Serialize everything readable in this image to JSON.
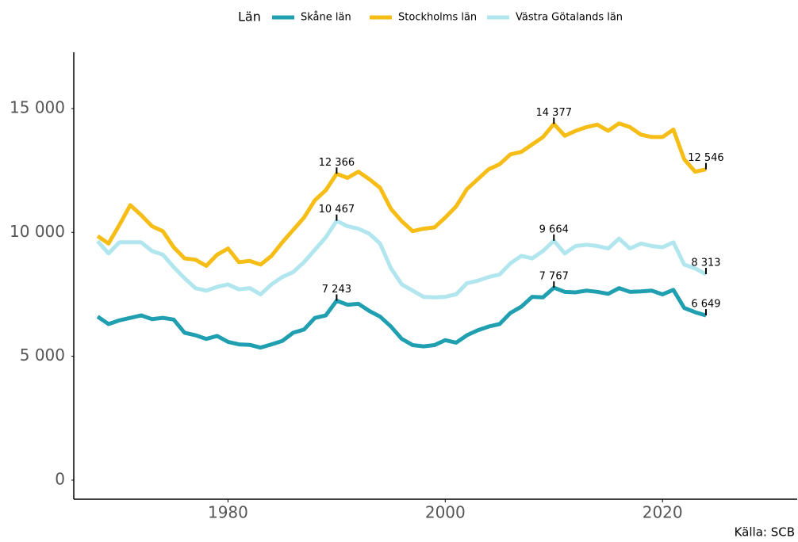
{
  "chart_data": {
    "type": "line",
    "legend_title": "Län",
    "source": "Källa: SCB",
    "x": [
      1968,
      1969,
      1970,
      1971,
      1972,
      1973,
      1974,
      1975,
      1976,
      1977,
      1978,
      1979,
      1980,
      1981,
      1982,
      1983,
      1984,
      1985,
      1986,
      1987,
      1988,
      1989,
      1990,
      1991,
      1992,
      1993,
      1994,
      1995,
      1996,
      1997,
      1998,
      1999,
      2000,
      2001,
      2002,
      2003,
      2004,
      2005,
      2006,
      2007,
      2008,
      2009,
      2010,
      2011,
      2012,
      2013,
      2014,
      2015,
      2016,
      2017,
      2018,
      2019,
      2020,
      2021,
      2022,
      2023,
      2024
    ],
    "series": [
      {
        "name": "Skåne län",
        "color": "#1f9fb0",
        "values": [
          6600,
          6300,
          6450,
          6550,
          6650,
          6500,
          6550,
          6480,
          5950,
          5850,
          5700,
          5820,
          5580,
          5480,
          5460,
          5350,
          5480,
          5620,
          5950,
          6080,
          6550,
          6650,
          7243,
          7080,
          7120,
          6830,
          6600,
          6200,
          5700,
          5450,
          5400,
          5450,
          5650,
          5550,
          5850,
          6050,
          6200,
          6300,
          6750,
          7000,
          7400,
          7380,
          7767,
          7600,
          7580,
          7650,
          7600,
          7520,
          7750,
          7600,
          7620,
          7650,
          7500,
          7680,
          6950,
          6780,
          6649
        ],
        "value_labels": [
          null,
          null,
          null,
          null,
          null,
          null,
          null,
          null,
          null,
          null,
          null,
          null,
          null,
          null,
          null,
          null,
          null,
          null,
          null,
          null,
          null,
          null,
          "7 243",
          null,
          null,
          null,
          null,
          null,
          null,
          null,
          null,
          null,
          null,
          null,
          null,
          null,
          null,
          null,
          null,
          null,
          null,
          null,
          "7 767",
          null,
          null,
          null,
          null,
          null,
          null,
          null,
          null,
          null,
          null,
          null,
          null,
          null,
          "6 649"
        ]
      },
      {
        "name": "Stockholms län",
        "color": "#f6bd16",
        "values": [
          9850,
          9550,
          10300,
          11100,
          10700,
          10250,
          10050,
          9400,
          8950,
          8900,
          8650,
          9100,
          9350,
          8800,
          8850,
          8700,
          9050,
          9600,
          10100,
          10600,
          11300,
          11700,
          12366,
          12200,
          12450,
          12150,
          11800,
          10950,
          10450,
          10050,
          10150,
          10200,
          10600,
          11050,
          11750,
          12150,
          12550,
          12750,
          13150,
          13250,
          13550,
          13850,
          14377,
          13900,
          14100,
          14250,
          14350,
          14100,
          14400,
          14250,
          13950,
          13850,
          13850,
          14150,
          12950,
          12450,
          12546
        ],
        "value_labels": [
          null,
          null,
          null,
          null,
          null,
          null,
          null,
          null,
          null,
          null,
          null,
          null,
          null,
          null,
          null,
          null,
          null,
          null,
          null,
          null,
          null,
          null,
          "12 366",
          null,
          null,
          null,
          null,
          null,
          null,
          null,
          null,
          null,
          null,
          null,
          null,
          null,
          null,
          null,
          null,
          null,
          null,
          null,
          "14 377",
          null,
          null,
          null,
          null,
          null,
          null,
          null,
          null,
          null,
          null,
          null,
          null,
          null,
          "12 546"
        ]
      },
      {
        "name": "Västra Götalands län",
        "color": "#b1e6ef",
        "values": [
          9650,
          9150,
          9600,
          9600,
          9600,
          9250,
          9100,
          8600,
          8150,
          7750,
          7650,
          7800,
          7900,
          7700,
          7750,
          7500,
          7900,
          8200,
          8400,
          8800,
          9300,
          9800,
          10467,
          10250,
          10150,
          9950,
          9550,
          8550,
          7900,
          7650,
          7400,
          7380,
          7400,
          7500,
          7950,
          8050,
          8200,
          8300,
          8750,
          9050,
          8950,
          9250,
          9664,
          9150,
          9450,
          9500,
          9450,
          9350,
          9750,
          9350,
          9550,
          9450,
          9400,
          9600,
          8700,
          8550,
          8313
        ],
        "value_labels": [
          null,
          null,
          null,
          null,
          null,
          null,
          null,
          null,
          null,
          null,
          null,
          null,
          null,
          null,
          null,
          null,
          null,
          null,
          null,
          null,
          null,
          null,
          "10 467",
          null,
          null,
          null,
          null,
          null,
          null,
          null,
          null,
          null,
          null,
          null,
          null,
          null,
          null,
          null,
          null,
          null,
          null,
          null,
          "9 664",
          null,
          null,
          null,
          null,
          null,
          null,
          null,
          null,
          null,
          null,
          null,
          null,
          null,
          "8 313"
        ]
      }
    ],
    "xlim": [
      1965.8,
      2032.4
    ],
    "xticks": [
      1980,
      2000,
      2020
    ],
    "ylim": [
      -770,
      17270
    ],
    "yticks": [
      0,
      {
        "value": 5000,
        "label": "5 000"
      },
      {
        "value": 10000,
        "label": "10 000"
      },
      {
        "value": 15000,
        "label": "15 000"
      }
    ],
    "grid": false
  }
}
